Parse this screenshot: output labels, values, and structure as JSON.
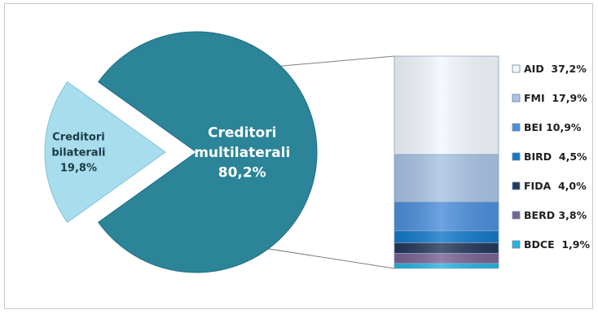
{
  "chart_data": {
    "type": "bar-of-pie",
    "pie": {
      "slices": [
        {
          "name_lines": [
            "Creditori",
            "multilaterali"
          ],
          "label": "80,2%",
          "value": 80.2,
          "color": "#2b8498",
          "exploded": false
        },
        {
          "name_lines": [
            "Creditori",
            "bilaterali"
          ],
          "label": "19,8%",
          "value": 19.8,
          "color": "#a8ddee",
          "exploded": true
        }
      ]
    },
    "bar": {
      "parent": "Creditori multilaterali",
      "segments_top_to_bottom": [
        {
          "name": "AID",
          "label": "37,2%",
          "value": 37.2,
          "color": "#f3f8fd"
        },
        {
          "name": "FMI",
          "label": "17,9%",
          "value": 17.9,
          "color": "#a9c4e4"
        },
        {
          "name": "BEI",
          "label": "10,9%",
          "value": 10.9,
          "color": "#4d8fdc"
        },
        {
          "name": "BIRD",
          "label": "4,5%",
          "value": 4.5,
          "color": "#1479c9"
        },
        {
          "name": "FIDA",
          "label": "4,0%",
          "value": 4.0,
          "color": "#24385a"
        },
        {
          "name": "BERD",
          "label": "3,8%",
          "value": 3.8,
          "color": "#7a6294"
        },
        {
          "name": "BDCE",
          "label": "1,9%",
          "value": 1.9,
          "color": "#27b3e0"
        }
      ]
    },
    "legend": [
      {
        "text": "AID  37,2%",
        "color": "#f3f8fd"
      },
      {
        "text": "FMI  17,9%",
        "color": "#a9c4e4"
      },
      {
        "text": "BEI 10,9%",
        "color": "#4d8fdc"
      },
      {
        "text": "BIRD  4,5%",
        "color": "#1479c9"
      },
      {
        "text": "FIDA  4,0%",
        "color": "#24385a"
      },
      {
        "text": "BERD 3,8%",
        "color": "#7a6294"
      },
      {
        "text": "BDCE  1,9%",
        "color": "#27b3e0"
      }
    ],
    "legend_position": "right"
  }
}
